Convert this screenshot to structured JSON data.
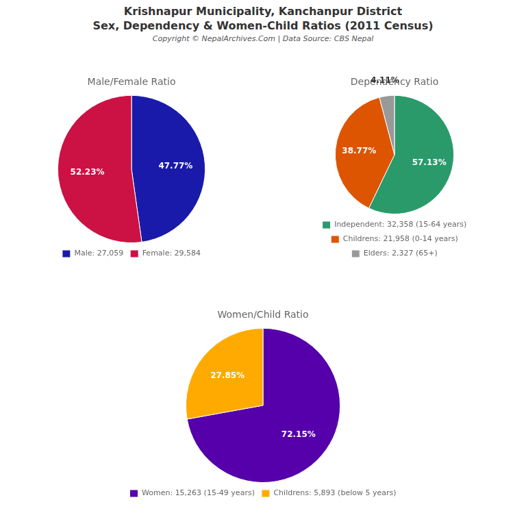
{
  "title": [
    "Krishnapur Municipality, Kanchanpur District",
    "Sex, Dependency & Women-Child Ratios (2011 Census)"
  ],
  "subtitle": "Copyright © NepalArchives.Com | Data Source: CBS Nepal",
  "chart_data": [
    {
      "type": "pie",
      "title": "Male/Female Ratio",
      "categories": [
        "Male: 27,059",
        "Female: 29,584"
      ],
      "values": [
        47.77,
        52.23
      ],
      "value_labels": [
        "47.77%",
        "52.23%"
      ],
      "colors": [
        "#1a1aaa",
        "#cc1144"
      ],
      "data_labels": true,
      "legend": "bottom"
    },
    {
      "type": "pie",
      "title": "Dependency Ratio",
      "categories": [
        "Independent: 32,358 (15-64 years)",
        "Childrens: 21,958 (0-14 years)",
        "Elders: 2,327 (65+)"
      ],
      "values": [
        57.13,
        38.77,
        4.11
      ],
      "value_labels": [
        "57.13%",
        "38.77%",
        "4.11%"
      ],
      "colors": [
        "#2a9a6a",
        "#dd5500",
        "#999999"
      ],
      "data_labels": true,
      "legend": "bottom"
    },
    {
      "type": "pie",
      "title": "Women/Child Ratio",
      "categories": [
        "Women: 15,263 (15-49 years)",
        "Childrens: 5,893 (below 5 years)"
      ],
      "values": [
        72.15,
        27.85
      ],
      "value_labels": [
        "72.15%",
        "27.85%"
      ],
      "colors": [
        "#5500aa",
        "#ffaa00"
      ],
      "data_labels": true,
      "legend": "bottom"
    }
  ]
}
